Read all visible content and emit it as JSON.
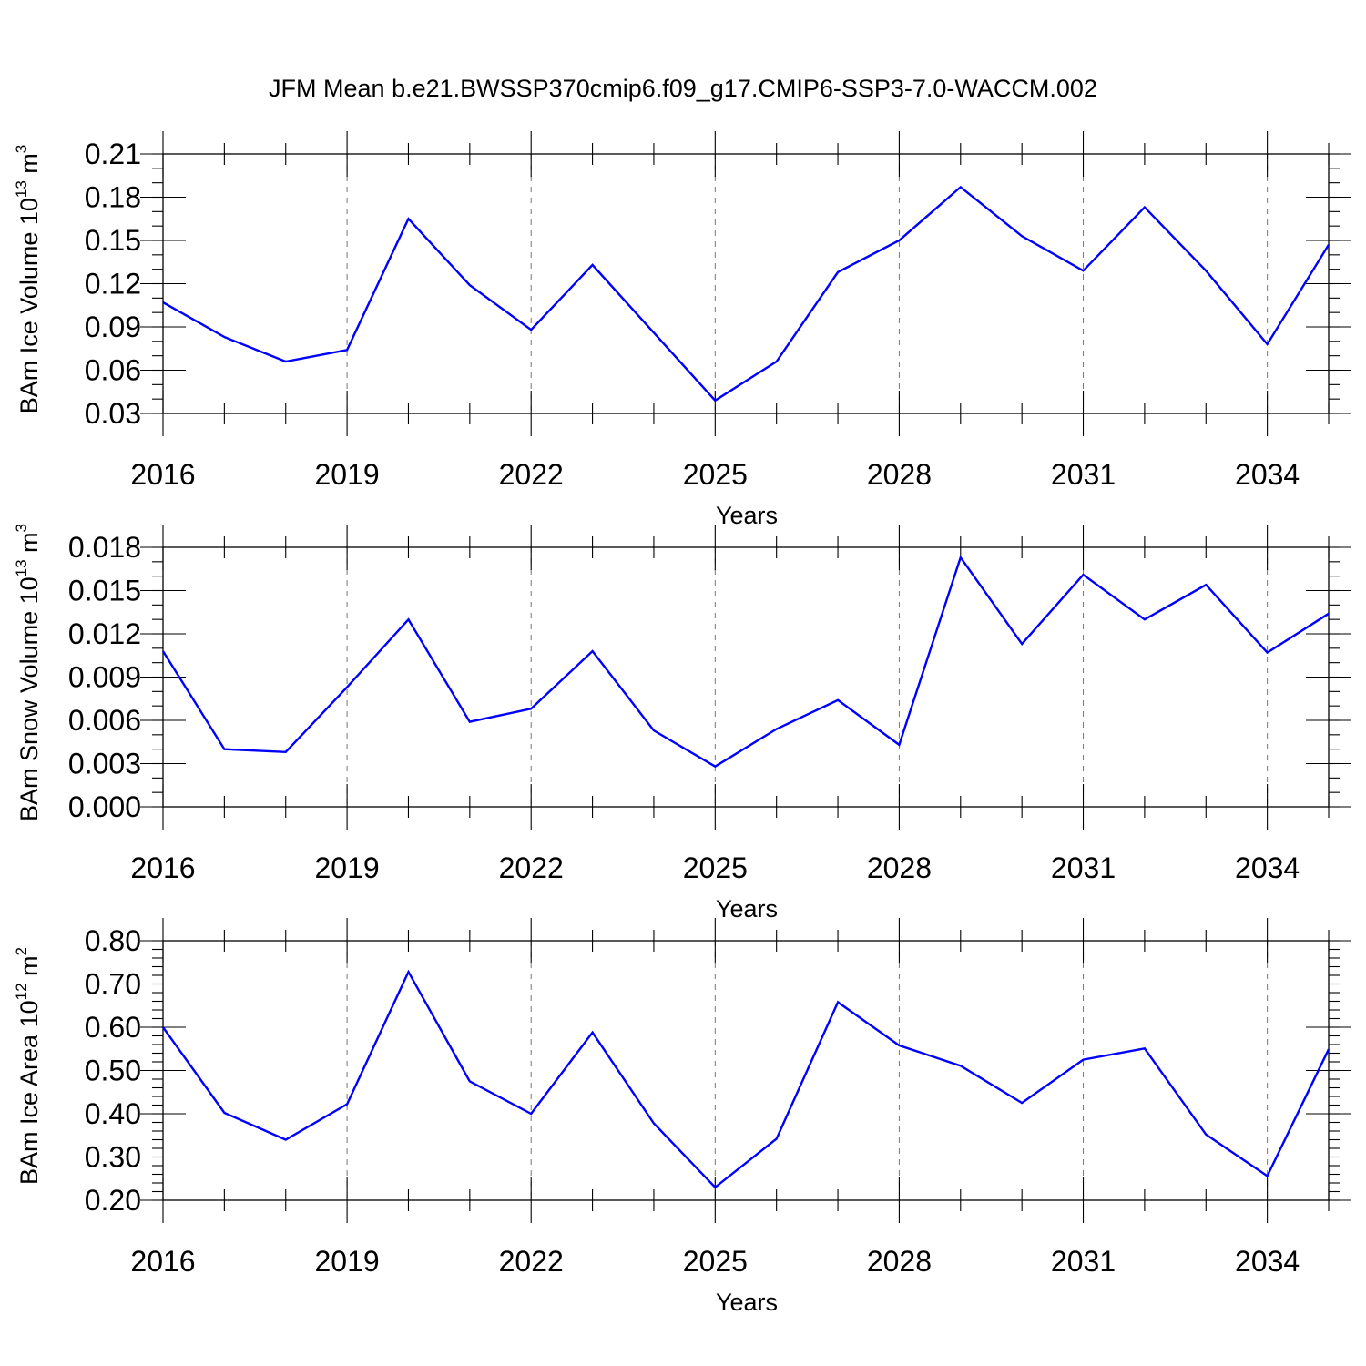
{
  "title": "JFM Mean b.e21.BWSSP370cmip6.f09_g17.CMIP6-SSP3-7.0-WACCM.002",
  "colors": {
    "line": "#0000ff",
    "grid": "#777777",
    "frame": "#000000"
  },
  "chart_data": [
    {
      "type": "line",
      "ylabel": {
        "text": "BAm Ice Volume 10",
        "exp": "13",
        "unit": "m",
        "unit_exp": "3"
      },
      "xlabel": "Years",
      "xlim": [
        2016,
        2035
      ],
      "ylim": [
        0.03,
        0.21
      ],
      "y_ticks": [
        0.03,
        0.06,
        0.09,
        0.12,
        0.15,
        0.18,
        0.21
      ],
      "y_tick_labels": [
        "0.03",
        "0.06",
        "0.09",
        "0.12",
        "0.15",
        "0.18",
        "0.21"
      ],
      "y_minor_step": 0.01,
      "x_ticks": [
        2016,
        2019,
        2022,
        2025,
        2028,
        2031,
        2034
      ],
      "x_tick_labels": [
        "2016",
        "2019",
        "2022",
        "2025",
        "2028",
        "2031",
        "2034"
      ],
      "grid_x": [
        2019,
        2022,
        2025,
        2028,
        2031,
        2034
      ],
      "x": [
        2016,
        2017,
        2018,
        2019,
        2020,
        2021,
        2022,
        2023,
        2024,
        2025,
        2026,
        2027,
        2028,
        2029,
        2030,
        2031,
        2032,
        2033,
        2034,
        2035
      ],
      "values": [
        0.107,
        0.083,
        0.066,
        0.074,
        0.165,
        0.119,
        0.088,
        0.133,
        0.086,
        0.039,
        0.066,
        0.128,
        0.15,
        0.187,
        0.153,
        0.129,
        0.173,
        0.129,
        0.078,
        0.147
      ]
    },
    {
      "type": "line",
      "ylabel": {
        "text": "BAm Snow Volume 10",
        "exp": "13",
        "unit": "m",
        "unit_exp": "3"
      },
      "xlabel": "Years",
      "xlim": [
        2016,
        2035
      ],
      "ylim": [
        0.0,
        0.018
      ],
      "y_ticks": [
        0.0,
        0.003,
        0.006,
        0.009,
        0.012,
        0.015,
        0.018
      ],
      "y_tick_labels": [
        "0.000",
        "0.003",
        "0.006",
        "0.009",
        "0.012",
        "0.015",
        "0.018"
      ],
      "y_minor_step": 0.001,
      "x_ticks": [
        2016,
        2019,
        2022,
        2025,
        2028,
        2031,
        2034
      ],
      "x_tick_labels": [
        "2016",
        "2019",
        "2022",
        "2025",
        "2028",
        "2031",
        "2034"
      ],
      "grid_x": [
        2019,
        2022,
        2025,
        2028,
        2031,
        2034
      ],
      "x": [
        2016,
        2017,
        2018,
        2019,
        2020,
        2021,
        2022,
        2023,
        2024,
        2025,
        2026,
        2027,
        2028,
        2029,
        2030,
        2031,
        2032,
        2033,
        2034,
        2035
      ],
      "values": [
        0.0108,
        0.004,
        0.0038,
        0.0083,
        0.013,
        0.0059,
        0.0068,
        0.0108,
        0.0053,
        0.0028,
        0.0054,
        0.0074,
        0.0043,
        0.0173,
        0.0113,
        0.0161,
        0.013,
        0.0154,
        0.0107,
        0.0134
      ]
    },
    {
      "type": "line",
      "ylabel": {
        "text": "BAm Ice Area 10",
        "exp": "12",
        "unit": "m",
        "unit_exp": "2"
      },
      "xlabel": "Years",
      "xlim": [
        2016,
        2035
      ],
      "ylim": [
        0.2,
        0.8
      ],
      "y_ticks": [
        0.2,
        0.3,
        0.4,
        0.5,
        0.6,
        0.7,
        0.8
      ],
      "y_tick_labels": [
        "0.20",
        "0.30",
        "0.40",
        "0.50",
        "0.60",
        "0.70",
        "0.80"
      ],
      "y_minor_step": 0.02,
      "x_ticks": [
        2016,
        2019,
        2022,
        2025,
        2028,
        2031,
        2034
      ],
      "x_tick_labels": [
        "2016",
        "2019",
        "2022",
        "2025",
        "2028",
        "2031",
        "2034"
      ],
      "grid_x": [
        2019,
        2022,
        2025,
        2028,
        2031,
        2034
      ],
      "x": [
        2016,
        2017,
        2018,
        2019,
        2020,
        2021,
        2022,
        2023,
        2024,
        2025,
        2026,
        2027,
        2028,
        2029,
        2030,
        2031,
        2032,
        2033,
        2034,
        2035
      ],
      "values": [
        0.6,
        0.402,
        0.34,
        0.422,
        0.728,
        0.475,
        0.4,
        0.588,
        0.378,
        0.23,
        0.342,
        0.658,
        0.558,
        0.511,
        0.425,
        0.525,
        0.551,
        0.352,
        0.256,
        0.549
      ]
    }
  ]
}
